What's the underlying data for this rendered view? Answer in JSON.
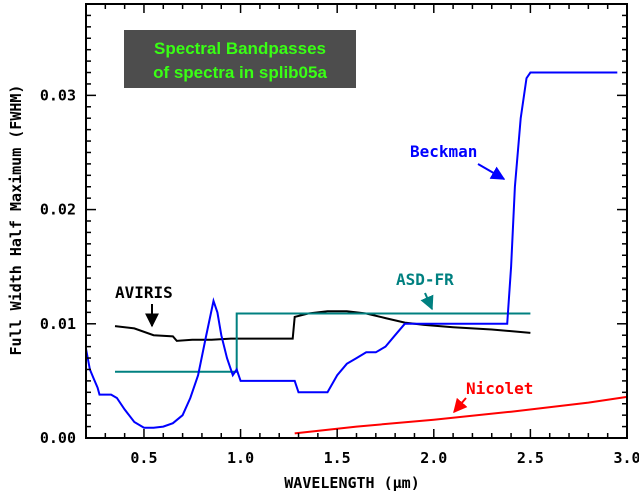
{
  "chart_data": {
    "type": "line",
    "title": "Spectral Bandpasses\nof spectra in splib05a",
    "xlabel": "WAVELENGTH (µm)",
    "ylabel": "Full Width Half Maximum (FWHM)",
    "xlim": [
      0.2,
      3.0
    ],
    "ylim": [
      0.0,
      0.038
    ],
    "x_ticks": [
      "0.5",
      "1.0",
      "1.5",
      "2.0",
      "2.5",
      "3.0"
    ],
    "y_ticks": [
      "0.00",
      "0.01",
      "0.02",
      "0.03"
    ],
    "grid": false,
    "series": [
      {
        "name": "AVIRIS",
        "color": "#000000",
        "x": [
          0.35,
          0.45,
          0.55,
          0.65,
          0.67,
          0.75,
          0.85,
          0.95,
          1.0,
          1.1,
          1.2,
          1.27,
          1.28,
          1.35,
          1.45,
          1.55,
          1.65,
          1.75,
          1.85,
          1.95,
          2.1,
          2.3,
          2.5
        ],
        "y": [
          0.0098,
          0.0096,
          0.009,
          0.0089,
          0.0085,
          0.0086,
          0.0086,
          0.0087,
          0.0087,
          0.0087,
          0.0087,
          0.0087,
          0.0106,
          0.0109,
          0.0111,
          0.0111,
          0.0109,
          0.0105,
          0.0101,
          0.0099,
          0.0097,
          0.0095,
          0.0092
        ]
      },
      {
        "name": "ASD-FR",
        "color": "#008080",
        "x": [
          0.35,
          0.98,
          0.98,
          2.5
        ],
        "y": [
          0.0058,
          0.0058,
          0.0109,
          0.0109
        ]
      },
      {
        "name": "Beckman",
        "color": "#0000ff",
        "x": [
          0.2,
          0.22,
          0.24,
          0.26,
          0.27,
          0.3,
          0.33,
          0.36,
          0.4,
          0.45,
          0.5,
          0.55,
          0.6,
          0.65,
          0.7,
          0.74,
          0.78,
          0.82,
          0.86,
          0.88,
          0.9,
          0.93,
          0.96,
          0.98,
          1.0,
          1.1,
          1.2,
          1.28,
          1.3,
          1.4,
          1.45,
          1.5,
          1.55,
          1.6,
          1.65,
          1.7,
          1.75,
          1.8,
          1.85,
          1.9,
          2.0,
          2.1,
          2.2,
          2.3,
          2.38,
          2.4,
          2.42,
          2.45,
          2.48,
          2.5,
          2.6,
          2.8,
          2.95
        ],
        "y": [
          0.0078,
          0.006,
          0.0052,
          0.0044,
          0.0038,
          0.0038,
          0.0038,
          0.0035,
          0.0025,
          0.0014,
          0.0009,
          0.0009,
          0.001,
          0.0013,
          0.002,
          0.0035,
          0.0055,
          0.0088,
          0.012,
          0.011,
          0.009,
          0.007,
          0.0055,
          0.006,
          0.005,
          0.005,
          0.005,
          0.005,
          0.004,
          0.004,
          0.004,
          0.0055,
          0.0065,
          0.007,
          0.0075,
          0.0075,
          0.008,
          0.009,
          0.01,
          0.01,
          0.01,
          0.01,
          0.01,
          0.01,
          0.01,
          0.015,
          0.022,
          0.028,
          0.0315,
          0.032,
          0.032,
          0.032,
          0.032
        ]
      },
      {
        "name": "Nicolet",
        "color": "#ff0000",
        "x": [
          1.28,
          1.6,
          2.0,
          2.4,
          2.8,
          3.0
        ],
        "y": [
          0.0004,
          0.001,
          0.0016,
          0.0023,
          0.0031,
          0.0036
        ]
      }
    ],
    "annotations": [
      {
        "text": "AVIRIS",
        "color": "#000000"
      },
      {
        "text": "ASD-FR",
        "color": "#008080"
      },
      {
        "text": "Beckman",
        "color": "#0000ff"
      },
      {
        "text": "Nicolet",
        "color": "#ff0000"
      }
    ],
    "title_box": {
      "background": "#4d4d4d",
      "text_color": "#39ff14"
    }
  }
}
